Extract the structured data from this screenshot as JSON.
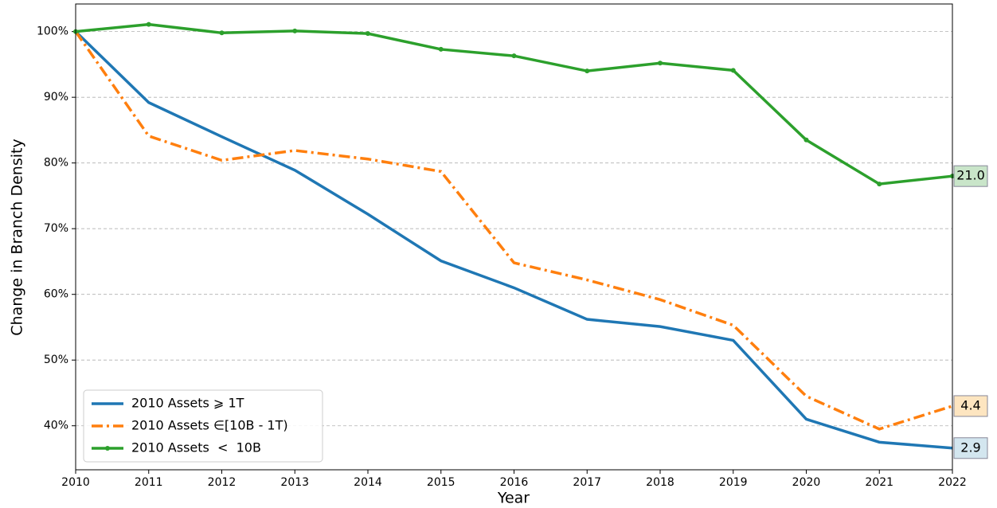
{
  "chart_data": {
    "type": "line",
    "x_label": "Year",
    "y_label": "Change in Branch Density",
    "x": [
      2010,
      2011,
      2012,
      2013,
      2014,
      2015,
      2016,
      2017,
      2018,
      2019,
      2020,
      2021,
      2022
    ],
    "xlim": [
      2010,
      2022
    ],
    "xticks": [
      2010,
      2011,
      2012,
      2013,
      2014,
      2015,
      2016,
      2017,
      2018,
      2019,
      2020,
      2021,
      2022
    ],
    "ylim": [
      33.3,
      104.2
    ],
    "yticks": [
      {
        "value": 40,
        "label": "40%"
      },
      {
        "value": 50,
        "label": "50%"
      },
      {
        "value": 60,
        "label": "60%"
      },
      {
        "value": 70,
        "label": "70%"
      },
      {
        "value": 80,
        "label": "80%"
      },
      {
        "value": 90,
        "label": "90%"
      },
      {
        "value": 100,
        "label": "100%"
      }
    ],
    "grid": true,
    "legend": "lower left",
    "series": [
      {
        "name": "2010 Assets ⩾ 1T",
        "color": "#1f77b4",
        "dash": "solid",
        "end_label": "2.9",
        "end_label_fill": "#d3e6ef",
        "values": [
          100,
          89.2,
          84,
          78.9,
          72.2,
          65.1,
          61,
          56.2,
          55.1,
          53,
          41,
          37.5,
          36.6
        ]
      },
      {
        "name": "2010 Assets ∈[10B - 1T)",
        "color": "#ff7f0e",
        "dash": "dashdot",
        "end_label": "4.4",
        "end_label_fill": "#fde5c0",
        "values": [
          100,
          84.1,
          80.4,
          81.9,
          80.6,
          78.7,
          64.8,
          62.2,
          59.2,
          55.3,
          44.5,
          39.5,
          43
        ]
      },
      {
        "name": "2010 Assets  <  10B",
        "color": "#2ca02c",
        "dash": "solid",
        "marker": "star",
        "end_label": "21.0",
        "end_label_fill": "#c9e5c9",
        "values": [
          100,
          101.1,
          99.8,
          100.1,
          99.7,
          97.3,
          96.3,
          94,
          95.2,
          94.1,
          83.5,
          76.8,
          78
        ]
      }
    ]
  }
}
